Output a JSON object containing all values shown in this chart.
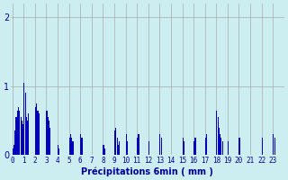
{
  "xlabel": "Précipitations 6min ( mm )",
  "ylim": [
    0,
    2.2
  ],
  "yticks": [
    0,
    1,
    2
  ],
  "background_color": "#cceef0",
  "bar_color": "#0000bb",
  "grid_color": "#aaaaaa",
  "xtick_labels": [
    "0",
    "1",
    "2",
    "3",
    "4",
    "5",
    "6",
    "7",
    "8",
    "9",
    "10",
    "11",
    "12",
    "13",
    "14",
    "15",
    "16",
    "17",
    "18",
    "19",
    "20",
    "21",
    "22",
    "23"
  ],
  "n_hours": 24,
  "intervals_per_hour": 10,
  "precip": [
    0.1,
    0.15,
    0.35,
    0.55,
    0.65,
    0.7,
    0.65,
    0.55,
    0.5,
    0.45,
    1.05,
    0.9,
    0.55,
    0.5,
    0.6,
    0.0,
    0.0,
    0.0,
    0.0,
    0.0,
    0.7,
    0.75,
    0.65,
    0.6,
    0.0,
    0.0,
    0.0,
    0.0,
    0.0,
    0.0,
    0.65,
    0.55,
    0.5,
    0.4,
    0.0,
    0.0,
    0.0,
    0.0,
    0.0,
    0.0,
    0.15,
    0.1,
    0.0,
    0.0,
    0.0,
    0.0,
    0.0,
    0.0,
    0.0,
    0.0,
    0.25,
    0.3,
    0.25,
    0.2,
    0.0,
    0.0,
    0.0,
    0.0,
    0.0,
    0.0,
    0.3,
    0.25,
    0.0,
    0.0,
    0.0,
    0.0,
    0.0,
    0.0,
    0.0,
    0.0,
    0.0,
    0.0,
    0.0,
    0.0,
    0.0,
    0.0,
    0.0,
    0.0,
    0.0,
    0.0,
    0.15,
    0.1,
    0.0,
    0.0,
    0.0,
    0.0,
    0.0,
    0.0,
    0.0,
    0.0,
    0.35,
    0.4,
    0.25,
    0.15,
    0.2,
    0.0,
    0.0,
    0.0,
    0.0,
    0.0,
    0.3,
    0.2,
    0.0,
    0.0,
    0.0,
    0.0,
    0.0,
    0.0,
    0.0,
    0.0,
    0.25,
    0.3,
    0.0,
    0.0,
    0.0,
    0.0,
    0.0,
    0.0,
    0.0,
    0.0,
    0.2,
    0.0,
    0.0,
    0.0,
    0.0,
    0.0,
    0.0,
    0.0,
    0.0,
    0.0,
    0.3,
    0.25,
    0.0,
    0.0,
    0.0,
    0.0,
    0.0,
    0.0,
    0.0,
    0.0,
    0.0,
    0.0,
    0.0,
    0.0,
    0.0,
    0.0,
    0.0,
    0.0,
    0.0,
    0.0,
    0.25,
    0.2,
    0.0,
    0.0,
    0.0,
    0.0,
    0.0,
    0.0,
    0.0,
    0.0,
    0.2,
    0.25,
    0.0,
    0.0,
    0.0,
    0.0,
    0.0,
    0.0,
    0.0,
    0.0,
    0.25,
    0.3,
    0.0,
    0.0,
    0.0,
    0.0,
    0.0,
    0.0,
    0.0,
    0.0,
    0.65,
    0.55,
    0.4,
    0.3,
    0.25,
    0.2,
    0.0,
    0.0,
    0.0,
    0.0,
    0.2,
    0.0,
    0.0,
    0.0,
    0.0,
    0.0,
    0.0,
    0.0,
    0.0,
    0.0,
    0.25,
    0.0,
    0.0,
    0.0,
    0.0,
    0.0,
    0.0,
    0.0,
    0.0,
    0.0,
    0.0,
    0.0,
    0.0,
    0.0,
    0.0,
    0.0,
    0.0,
    0.0,
    0.0,
    0.0,
    0.25,
    0.0,
    0.0,
    0.0,
    0.0,
    0.0,
    0.0,
    0.0,
    0.0,
    0.0,
    0.3,
    0.25,
    0.0,
    0.0,
    0.0,
    0.0,
    0.0,
    0.0,
    0.0,
    0.0
  ]
}
